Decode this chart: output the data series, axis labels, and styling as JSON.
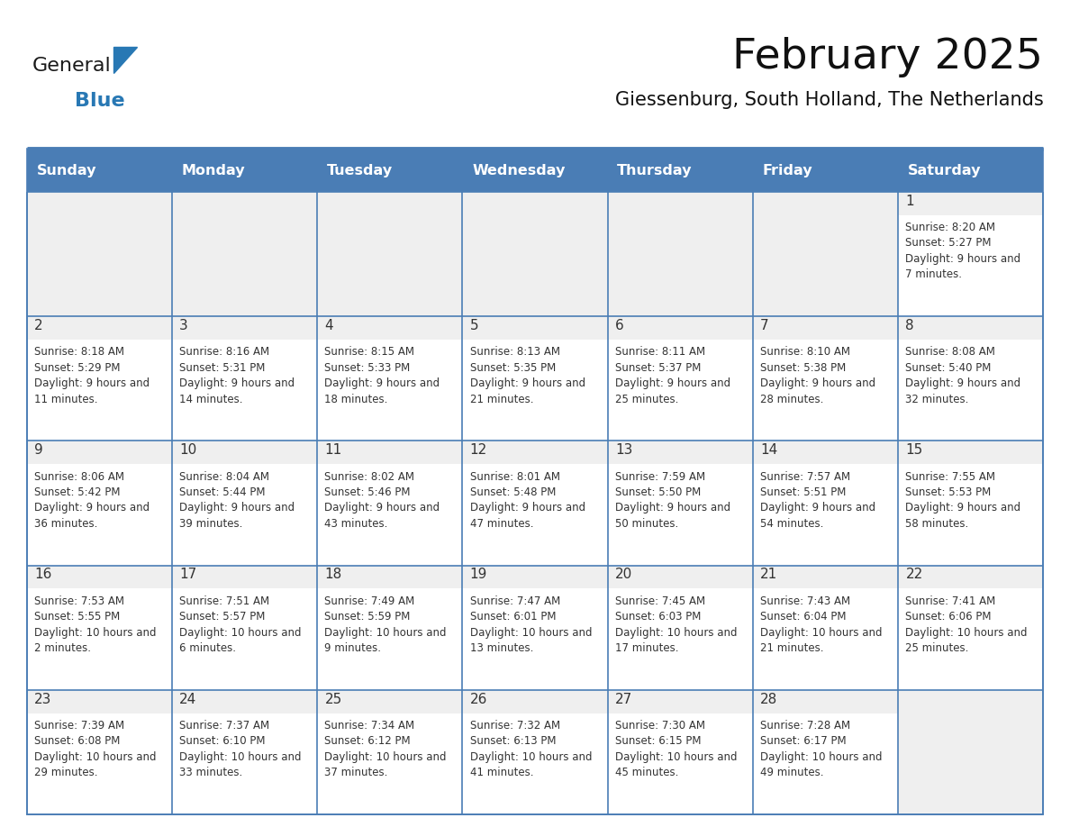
{
  "title": "February 2025",
  "subtitle": "Giessenburg, South Holland, The Netherlands",
  "days_of_week": [
    "Sunday",
    "Monday",
    "Tuesday",
    "Wednesday",
    "Thursday",
    "Friday",
    "Saturday"
  ],
  "header_bg": "#4a7db5",
  "header_text": "#ffffff",
  "day_num_bg": "#efefef",
  "cell_bg": "#ffffff",
  "border_color": "#4a7db5",
  "sep_line_color": "#4a7db5",
  "text_color": "#333333",
  "day_num_color": "#333333",
  "calendar_data": [
    [
      {
        "day": null,
        "sunrise": null,
        "sunset": null,
        "daylight": null
      },
      {
        "day": null,
        "sunrise": null,
        "sunset": null,
        "daylight": null
      },
      {
        "day": null,
        "sunrise": null,
        "sunset": null,
        "daylight": null
      },
      {
        "day": null,
        "sunrise": null,
        "sunset": null,
        "daylight": null
      },
      {
        "day": null,
        "sunrise": null,
        "sunset": null,
        "daylight": null
      },
      {
        "day": null,
        "sunrise": null,
        "sunset": null,
        "daylight": null
      },
      {
        "day": 1,
        "sunrise": "8:20 AM",
        "sunset": "5:27 PM",
        "daylight": "9 hours and 7 minutes"
      }
    ],
    [
      {
        "day": 2,
        "sunrise": "8:18 AM",
        "sunset": "5:29 PM",
        "daylight": "9 hours and 11 minutes"
      },
      {
        "day": 3,
        "sunrise": "8:16 AM",
        "sunset": "5:31 PM",
        "daylight": "9 hours and 14 minutes"
      },
      {
        "day": 4,
        "sunrise": "8:15 AM",
        "sunset": "5:33 PM",
        "daylight": "9 hours and 18 minutes"
      },
      {
        "day": 5,
        "sunrise": "8:13 AM",
        "sunset": "5:35 PM",
        "daylight": "9 hours and 21 minutes"
      },
      {
        "day": 6,
        "sunrise": "8:11 AM",
        "sunset": "5:37 PM",
        "daylight": "9 hours and 25 minutes"
      },
      {
        "day": 7,
        "sunrise": "8:10 AM",
        "sunset": "5:38 PM",
        "daylight": "9 hours and 28 minutes"
      },
      {
        "day": 8,
        "sunrise": "8:08 AM",
        "sunset": "5:40 PM",
        "daylight": "9 hours and 32 minutes"
      }
    ],
    [
      {
        "day": 9,
        "sunrise": "8:06 AM",
        "sunset": "5:42 PM",
        "daylight": "9 hours and 36 minutes"
      },
      {
        "day": 10,
        "sunrise": "8:04 AM",
        "sunset": "5:44 PM",
        "daylight": "9 hours and 39 minutes"
      },
      {
        "day": 11,
        "sunrise": "8:02 AM",
        "sunset": "5:46 PM",
        "daylight": "9 hours and 43 minutes"
      },
      {
        "day": 12,
        "sunrise": "8:01 AM",
        "sunset": "5:48 PM",
        "daylight": "9 hours and 47 minutes"
      },
      {
        "day": 13,
        "sunrise": "7:59 AM",
        "sunset": "5:50 PM",
        "daylight": "9 hours and 50 minutes"
      },
      {
        "day": 14,
        "sunrise": "7:57 AM",
        "sunset": "5:51 PM",
        "daylight": "9 hours and 54 minutes"
      },
      {
        "day": 15,
        "sunrise": "7:55 AM",
        "sunset": "5:53 PM",
        "daylight": "9 hours and 58 minutes"
      }
    ],
    [
      {
        "day": 16,
        "sunrise": "7:53 AM",
        "sunset": "5:55 PM",
        "daylight": "10 hours and 2 minutes"
      },
      {
        "day": 17,
        "sunrise": "7:51 AM",
        "sunset": "5:57 PM",
        "daylight": "10 hours and 6 minutes"
      },
      {
        "day": 18,
        "sunrise": "7:49 AM",
        "sunset": "5:59 PM",
        "daylight": "10 hours and 9 minutes"
      },
      {
        "day": 19,
        "sunrise": "7:47 AM",
        "sunset": "6:01 PM",
        "daylight": "10 hours and 13 minutes"
      },
      {
        "day": 20,
        "sunrise": "7:45 AM",
        "sunset": "6:03 PM",
        "daylight": "10 hours and 17 minutes"
      },
      {
        "day": 21,
        "sunrise": "7:43 AM",
        "sunset": "6:04 PM",
        "daylight": "10 hours and 21 minutes"
      },
      {
        "day": 22,
        "sunrise": "7:41 AM",
        "sunset": "6:06 PM",
        "daylight": "10 hours and 25 minutes"
      }
    ],
    [
      {
        "day": 23,
        "sunrise": "7:39 AM",
        "sunset": "6:08 PM",
        "daylight": "10 hours and 29 minutes"
      },
      {
        "day": 24,
        "sunrise": "7:37 AM",
        "sunset": "6:10 PM",
        "daylight": "10 hours and 33 minutes"
      },
      {
        "day": 25,
        "sunrise": "7:34 AM",
        "sunset": "6:12 PM",
        "daylight": "10 hours and 37 minutes"
      },
      {
        "day": 26,
        "sunrise": "7:32 AM",
        "sunset": "6:13 PM",
        "daylight": "10 hours and 41 minutes"
      },
      {
        "day": 27,
        "sunrise": "7:30 AM",
        "sunset": "6:15 PM",
        "daylight": "10 hours and 45 minutes"
      },
      {
        "day": 28,
        "sunrise": "7:28 AM",
        "sunset": "6:17 PM",
        "daylight": "10 hours and 49 minutes"
      },
      {
        "day": null,
        "sunrise": null,
        "sunset": null,
        "daylight": null
      }
    ]
  ],
  "logo_color_general": "#1a1a1a",
  "logo_color_blue": "#2878b4",
  "logo_triangle_color": "#2878b4",
  "fig_width": 11.88,
  "fig_height": 9.18,
  "dpi": 100
}
